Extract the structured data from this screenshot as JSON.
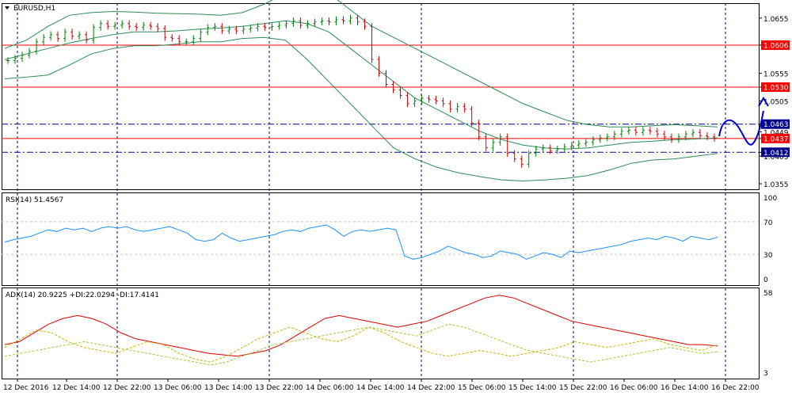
{
  "chart_data": [
    {
      "type": "candlestick",
      "symbol_label": "EURUSD,H1",
      "price_ticks": [
        "1.0655",
        "1.0606",
        "1.0555",
        "1.0530",
        "1.0505",
        "1.0463",
        "1.0449",
        "1.0437",
        "1.0412",
        "1.0405",
        "1.0355"
      ],
      "ylim": [
        1.0345,
        1.0682
      ],
      "x_ticks": [
        "12 Dec 2016",
        "12 Dec 14:00",
        "12 Dec 22:00",
        "13 Dec 06:00",
        "13 Dec 14:00",
        "13 Dec 22:00",
        "14 Dec 06:00",
        "14 Dec 14:00",
        "14 Dec 22:00",
        "15 Dec 06:00",
        "15 Dec 14:00",
        "15 Dec 22:00",
        "16 Dec 06:00",
        "16 Dec 14:00",
        "16 Dec 22:00"
      ],
      "horizontal_levels": [
        {
          "value": "1.0606",
          "color": "#ff0000",
          "style": "solid",
          "tag_bg": "#ff0000"
        },
        {
          "value": "1.0530",
          "color": "#ff0000",
          "style": "solid",
          "tag_bg": "#ff0000"
        },
        {
          "value": "1.0463",
          "color": "#00008b",
          "style": "dashdot",
          "tag_bg": "#00008b"
        },
        {
          "value": "1.0437",
          "color": "#ff0000",
          "style": "solid",
          "tag_bg": "#ff0000"
        },
        {
          "value": "1.0412",
          "color": "#00008b",
          "style": "dashdot",
          "tag_bg": "#00008b"
        }
      ],
      "close_series": [
        1.0578,
        1.0582,
        1.0588,
        1.0595,
        1.0612,
        1.062,
        1.0625,
        1.0618,
        1.063,
        1.0622,
        1.0625,
        1.0615,
        1.0638,
        1.0645,
        1.064,
        1.0642,
        1.0645,
        1.064,
        1.0638,
        1.0642,
        1.064,
        1.0636,
        1.062,
        1.0618,
        1.0612,
        1.0612,
        1.0618,
        1.063,
        1.0638,
        1.064,
        1.0632,
        1.0635,
        1.0632,
        1.0635,
        1.0637,
        1.064,
        1.0638,
        1.064,
        1.0642,
        1.0645,
        1.065,
        1.0642,
        1.0645,
        1.0648,
        1.065,
        1.0648,
        1.0652,
        1.065,
        1.0655,
        1.0648,
        1.064,
        1.058,
        1.0555,
        1.0535,
        1.0525,
        1.0515,
        1.05,
        1.0505,
        1.051,
        1.0508,
        1.0505,
        1.05,
        1.049,
        1.0495,
        1.049,
        1.0465,
        1.044,
        1.042,
        1.043,
        1.044,
        1.041,
        1.04,
        1.039,
        1.041,
        1.0418,
        1.042,
        1.0415,
        1.0418,
        1.0422,
        1.0425,
        1.0428,
        1.043,
        1.0435,
        1.0438,
        1.044,
        1.0445,
        1.045,
        1.0452,
        1.0448,
        1.0452,
        1.045,
        1.0445,
        1.044,
        1.0435,
        1.044,
        1.0445,
        1.0448,
        1.0442,
        1.044,
        1.0437
      ],
      "bollinger": {
        "upper": [
          1.06,
          1.0615,
          1.064,
          1.066,
          1.0665,
          1.0667,
          1.0666,
          1.0664,
          1.0663,
          1.0662,
          1.066,
          1.0665,
          1.068,
          1.07,
          1.071,
          1.07,
          1.067,
          1.064,
          1.062,
          1.06,
          1.058,
          1.056,
          1.054,
          1.052,
          1.05,
          1.0485,
          1.047,
          1.0462,
          1.0458,
          1.0458,
          1.046,
          1.0462,
          1.046,
          1.0458
        ],
        "middle": [
          1.058,
          1.059,
          1.06,
          1.061,
          1.0618,
          1.0625,
          1.063,
          1.063,
          1.0632,
          1.0635,
          1.0637,
          1.064,
          1.0645,
          1.065,
          1.0645,
          1.063,
          1.06,
          1.057,
          1.054,
          1.051,
          1.049,
          1.047,
          1.045,
          1.0435,
          1.0425,
          1.042,
          1.0418,
          1.042,
          1.0425,
          1.043,
          1.0432,
          1.0435,
          1.0436,
          1.0438
        ],
        "lower": [
          1.0545,
          1.0548,
          1.0552,
          1.057,
          1.059,
          1.06,
          1.0605,
          1.0605,
          1.0608,
          1.0612,
          1.0612,
          1.0618,
          1.062,
          1.0615,
          1.058,
          1.054,
          1.05,
          1.046,
          1.042,
          1.04,
          1.0385,
          1.0375,
          1.0368,
          1.0362,
          1.036,
          1.0362,
          1.0365,
          1.037,
          1.038,
          1.0392,
          1.0398,
          1.04,
          1.0405,
          1.041
        ]
      },
      "projection_color": "#0000cc"
    },
    {
      "type": "line",
      "label": "RSI(14) 51.4567",
      "y_ticks": [
        "100",
        "70",
        "30",
        "0"
      ],
      "ylim": [
        0,
        100
      ],
      "levels": [
        70,
        30
      ],
      "series": [
        {
          "color": "#1e90ff",
          "values": [
            45,
            48,
            50,
            52,
            56,
            60,
            58,
            62,
            60,
            62,
            58,
            62,
            64,
            62,
            64,
            60,
            58,
            60,
            62,
            64,
            60,
            56,
            48,
            46,
            48,
            56,
            50,
            46,
            48,
            50,
            52,
            54,
            58,
            60,
            58,
            62,
            64,
            66,
            60,
            52,
            58,
            60,
            58,
            60,
            62,
            60,
            28,
            24,
            26,
            30,
            34,
            40,
            36,
            32,
            30,
            26,
            28,
            34,
            32,
            30,
            24,
            28,
            32,
            30,
            26,
            34,
            32,
            34,
            36,
            38,
            40,
            42,
            46,
            48,
            50,
            48,
            52,
            50,
            46,
            52,
            50,
            48,
            51
          ]
        }
      ]
    },
    {
      "type": "line",
      "label": "ADX(14) 20.9225 +DI:22.0294 -DI:17.4141",
      "y_ticks": [
        "58",
        "3"
      ],
      "ylim": [
        3,
        58
      ],
      "series": [
        {
          "color": "#dd0000",
          "style": "solid",
          "values": [
            22,
            24,
            30,
            36,
            40,
            42,
            40,
            36,
            30,
            26,
            24,
            22,
            20,
            18,
            16,
            15,
            14,
            16,
            18,
            22,
            28,
            34,
            40,
            42,
            40,
            38,
            36,
            34,
            36,
            38,
            42,
            46,
            50,
            54,
            56,
            54,
            50,
            46,
            42,
            38,
            36,
            34,
            32,
            30,
            28,
            26,
            24,
            22,
            22,
            21
          ]
        },
        {
          "color": "#c8b400",
          "style": "dashed",
          "values": [
            20,
            26,
            32,
            30,
            24,
            20,
            18,
            16,
            20,
            24,
            22,
            16,
            12,
            10,
            14,
            20,
            26,
            30,
            34,
            30,
            26,
            24,
            28,
            34,
            30,
            24,
            20,
            16,
            14,
            16,
            18,
            16,
            14,
            16,
            18,
            20,
            24,
            22,
            20,
            22,
            24,
            26,
            22,
            20,
            18,
            22
          ]
        },
        {
          "color": "#9acd32",
          "style": "dashed",
          "values": [
            14,
            16,
            18,
            20,
            22,
            24,
            22,
            20,
            18,
            16,
            14,
            12,
            10,
            8,
            10,
            14,
            18,
            22,
            24,
            26,
            28,
            30,
            32,
            34,
            32,
            30,
            28,
            32,
            36,
            34,
            30,
            26,
            22,
            18,
            16,
            14,
            12,
            10,
            12,
            14,
            16,
            18,
            20,
            18,
            16,
            17
          ]
        }
      ]
    }
  ]
}
